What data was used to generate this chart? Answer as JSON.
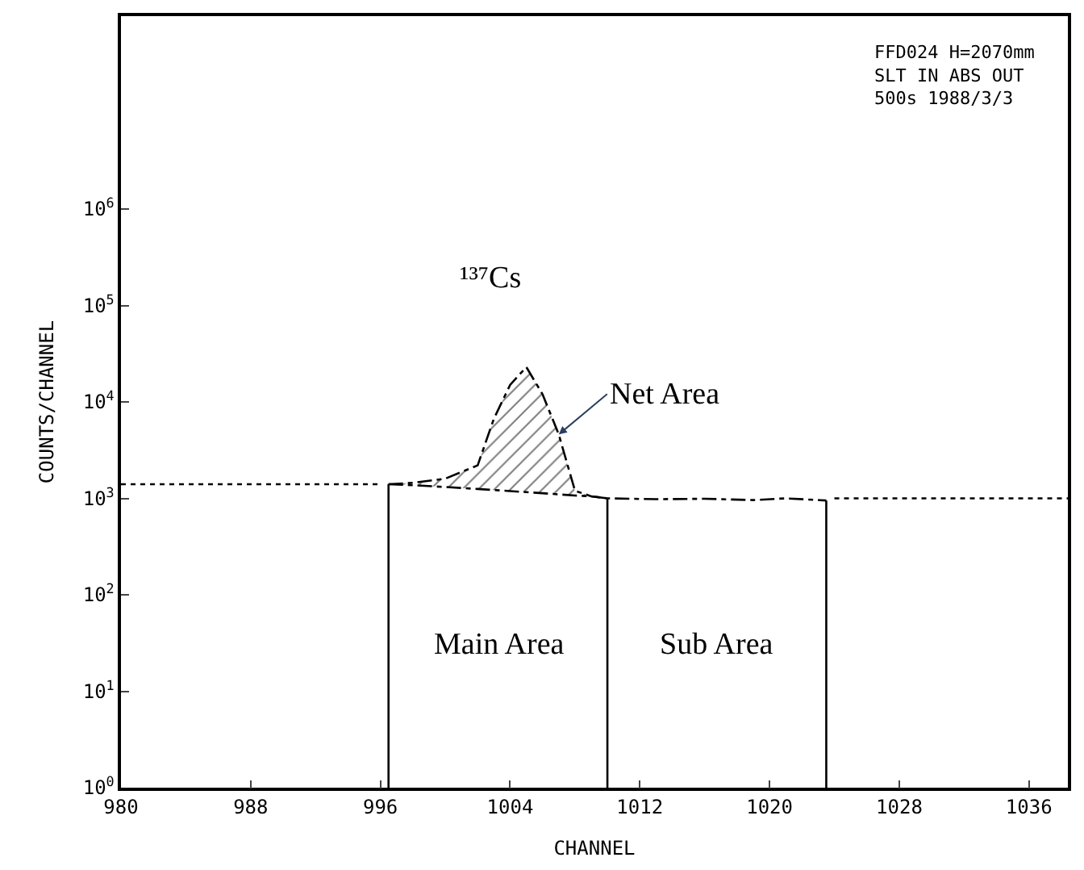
{
  "chart_data": {
    "type": "line",
    "xlabel": "CHANNEL",
    "ylabel": "COUNTS/CHANNEL",
    "log": "y",
    "xlim": [
      980,
      1038.4
    ],
    "xticks": [
      980,
      988,
      996,
      1004,
      1012,
      1020,
      1028,
      1036
    ],
    "ylim": [
      1,
      100000000
    ],
    "yticks": [
      {
        "value": 1,
        "label": "10$^{0}$"
      },
      {
        "value": 10,
        "label": "10$^{1}$"
      },
      {
        "value": 100,
        "label": "10$^{2}$"
      },
      {
        "value": 1000,
        "label": "10$^{3}$"
      },
      {
        "value": 10000,
        "label": "10$^{4}$"
      },
      {
        "value": 100000,
        "label": "10$^{5}$"
      },
      {
        "value": 1000000,
        "label": "10$^{6}$"
      }
    ],
    "series": [
      {
        "line_style": "dotted",
        "color": "#000000",
        "x": [
          980,
          984,
          988,
          992,
          996
        ],
        "values": [
          1400,
          1400,
          1400,
          1400,
          1400
        ]
      },
      {
        "line_style": "dotted",
        "color": "#000000",
        "x": [
          1024,
          1028,
          1032,
          1038.4
        ],
        "values": [
          1000,
          1000,
          1000,
          1000
        ]
      },
      {
        "line_style": "dashed",
        "color": "#000000",
        "x": [
          996.5,
          998,
          1000,
          1002,
          1003,
          1004,
          1005,
          1006,
          1007,
          1008,
          1009,
          1010,
          1013,
          1016,
          1019,
          1021,
          1023.5
        ],
        "values": [
          1400,
          1450,
          1600,
          2200,
          6700,
          15000,
          23000,
          12000,
          4600,
          1200,
          1050,
          1000,
          980,
          990,
          960,
          1000,
          950
        ]
      },
      {
        "line_style": "dashed",
        "color": "#000000",
        "x": [
          996.5,
          998,
          1000,
          1002,
          1003,
          1004,
          1005,
          1006,
          1007,
          1008,
          1009,
          1010
        ],
        "values": [
          1400,
          1370,
          1310,
          1250,
          1220,
          1190,
          1160,
          1130,
          1100,
          1070,
          1050,
          1000
        ],
        "lower": [
          1400,
          1370,
          1310,
          1250,
          1220,
          1190,
          1160,
          1130,
          1100,
          1070,
          1050,
          1000
        ],
        "upper": [
          1400,
          1450,
          1600,
          2200,
          6700,
          15000,
          23000,
          12000,
          4600,
          1200,
          1050,
          1000
        ]
      },
      {
        "line_style": "solid",
        "color": "#000000",
        "x": [
          996.5,
          996.5
        ],
        "values": [
          1,
          1400
        ]
      },
      {
        "line_style": "solid",
        "color": "#000000",
        "x": [
          1010,
          1010
        ],
        "values": [
          1,
          1000
        ]
      },
      {
        "line_style": "solid",
        "color": "#000000",
        "x": [
          1023.5,
          1023.5
        ],
        "values": [
          1,
          950
        ]
      }
    ],
    "annotations": [
      "¹³⁷Cs",
      {
        "text": "Net Area",
        "x": 1007,
        "y": 4600
      },
      "Main Area",
      "Sub Area",
      "FFD024 H=2070mm",
      "SLT IN ABS OUT",
      "500s 1988/3/3"
    ]
  }
}
